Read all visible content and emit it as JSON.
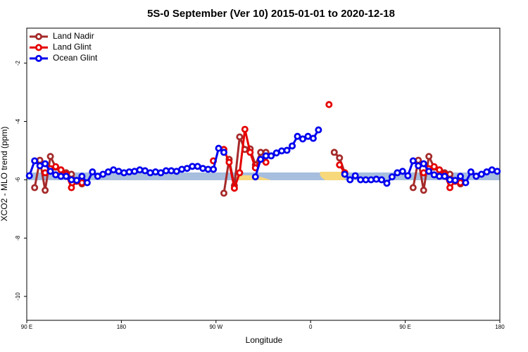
{
  "chart_data": {
    "type": "line",
    "title": "5S-0 September (Ver 10)   2015-01-01 to 2020-12-18",
    "x_label": "Longitude",
    "y_label": "XCO2 - MLO trend (ppm)",
    "x": [
      92.5,
      97.5,
      102.5,
      107.5,
      112.5,
      117.5,
      122.5,
      127.5,
      132.5,
      137.5,
      142.5,
      147.5,
      152.5,
      157.5,
      162.5,
      167.5,
      172.5,
      177.5,
      182.5,
      187.5,
      192.5,
      197.5,
      202.5,
      207.5,
      212.5,
      217.5,
      222.5,
      227.5,
      232.5,
      237.5,
      242.5,
      247.5,
      252.5,
      257.5,
      262.5,
      267.5,
      272.5,
      277.5,
      282.5,
      287.5,
      292.5,
      297.5,
      302.5,
      307.5,
      312.5,
      317.5,
      322.5,
      327.5,
      332.5,
      337.5,
      342.5,
      347.5,
      352.5,
      357.5,
      362.5,
      367.5,
      372.5,
      377.5,
      382.5,
      387.5,
      392.5,
      397.5,
      402.5,
      407.5,
      412.5,
      417.5,
      422.5,
      427.5,
      432.5,
      437.5,
      442.5,
      447.5,
      452.5,
      457.5,
      462.5,
      467.5,
      472.5,
      477.5,
      482.5,
      487.5,
      492.5,
      497.5,
      502.5,
      507.5,
      512.5,
      517.5,
      522.5,
      527.5,
      532.5,
      537.5
    ],
    "series": [
      {
        "name": "Land Nadir",
        "color": "#a52a2a",
        "values": [
          null,
          -6.27,
          -5.33,
          -6.36,
          -5.2,
          -5.57,
          -5.66,
          -5.76,
          -5.81,
          -6.05,
          -6.14,
          null,
          null,
          null,
          null,
          null,
          null,
          null,
          null,
          null,
          null,
          null,
          null,
          null,
          null,
          null,
          null,
          null,
          null,
          null,
          null,
          null,
          null,
          null,
          null,
          -5.64,
          null,
          -6.46,
          -5.3,
          -6.2,
          -4.53,
          -4.96,
          -4.94,
          -5.49,
          -5.06,
          -5.06,
          null,
          null,
          null,
          null,
          null,
          null,
          null,
          null,
          null,
          null,
          null,
          null,
          -5.06,
          -5.25,
          -5.76,
          null,
          null,
          null,
          null,
          null,
          null,
          null,
          null,
          null,
          null,
          null,
          null,
          -6.27,
          -5.33,
          -6.36,
          -5.2,
          -5.57,
          -5.66,
          -5.76,
          -5.81,
          -6.05,
          -6.14,
          null,
          null,
          null,
          null,
          null,
          null,
          null
        ]
      },
      {
        "name": "Land Glint",
        "color": "#e60000",
        "values": [
          null,
          null,
          null,
          -5.76,
          -5.62,
          -5.55,
          -5.66,
          -5.81,
          -6.27,
          -6.05,
          -6.1,
          null,
          null,
          null,
          null,
          null,
          null,
          null,
          null,
          null,
          null,
          null,
          null,
          null,
          null,
          null,
          null,
          null,
          null,
          null,
          null,
          null,
          null,
          null,
          null,
          -5.35,
          null,
          -4.96,
          -5.4,
          -6.29,
          -5.76,
          -4.27,
          -5.06,
          -5.59,
          -5.3,
          -5.4,
          null,
          null,
          null,
          null,
          null,
          null,
          null,
          null,
          null,
          null,
          null,
          -3.42,
          null,
          -5.49,
          -5.76,
          null,
          null,
          null,
          null,
          null,
          null,
          null,
          null,
          null,
          null,
          null,
          null,
          null,
          null,
          -5.76,
          -5.62,
          -5.55,
          -5.66,
          -5.81,
          -6.27,
          -6.05,
          -6.1,
          null,
          null,
          null,
          null,
          null,
          null,
          null
        ]
      },
      {
        "name": "Ocean Glint",
        "color": "#0000ee",
        "values": [
          -5.86,
          -5.35,
          -5.52,
          -5.45,
          -5.71,
          -5.83,
          -5.88,
          -5.88,
          -6.0,
          -6.02,
          -5.88,
          -6.1,
          -5.73,
          -5.88,
          -5.81,
          -5.73,
          -5.66,
          -5.71,
          -5.76,
          -5.73,
          -5.71,
          -5.66,
          -5.69,
          -5.76,
          -5.73,
          -5.76,
          -5.69,
          -5.69,
          -5.71,
          -5.64,
          -5.61,
          -5.54,
          -5.54,
          -5.61,
          -5.64,
          -5.64,
          -4.92,
          -5.06,
          null,
          null,
          null,
          null,
          null,
          -5.9,
          -5.3,
          -5.18,
          -5.18,
          -5.08,
          -5.01,
          -4.99,
          -4.84,
          -4.51,
          -4.6,
          -4.51,
          -4.58,
          -4.29,
          null,
          null,
          null,
          null,
          -5.81,
          -6.0,
          -5.86,
          -6.0,
          -6.0,
          -6.0,
          -5.98,
          -6.0,
          -6.12,
          -5.9,
          -5.76,
          -5.71,
          -5.86,
          -5.35,
          -5.52,
          -5.45,
          -5.71,
          -5.83,
          -5.88,
          -5.88,
          -6.0,
          -6.02,
          -5.88,
          -6.1,
          -5.73,
          -5.88,
          -5.81,
          -5.73,
          -5.66,
          -5.71
        ]
      }
    ],
    "xlim": [
      90,
      540
    ],
    "xticks": [
      {
        "value": 90,
        "label": "90 E"
      },
      180,
      {
        "value": 270,
        "label": "90 W"
      },
      {
        "value": 360,
        "label": "0"
      },
      {
        "value": 450,
        "label": "90 E"
      },
      {
        "value": 540,
        "label": "180"
      }
    ],
    "ylim": [
      -10.82,
      -0.8
    ],
    "yticks": [
      -2,
      -4,
      -6,
      -8,
      -10
    ],
    "legend": "topleft"
  }
}
